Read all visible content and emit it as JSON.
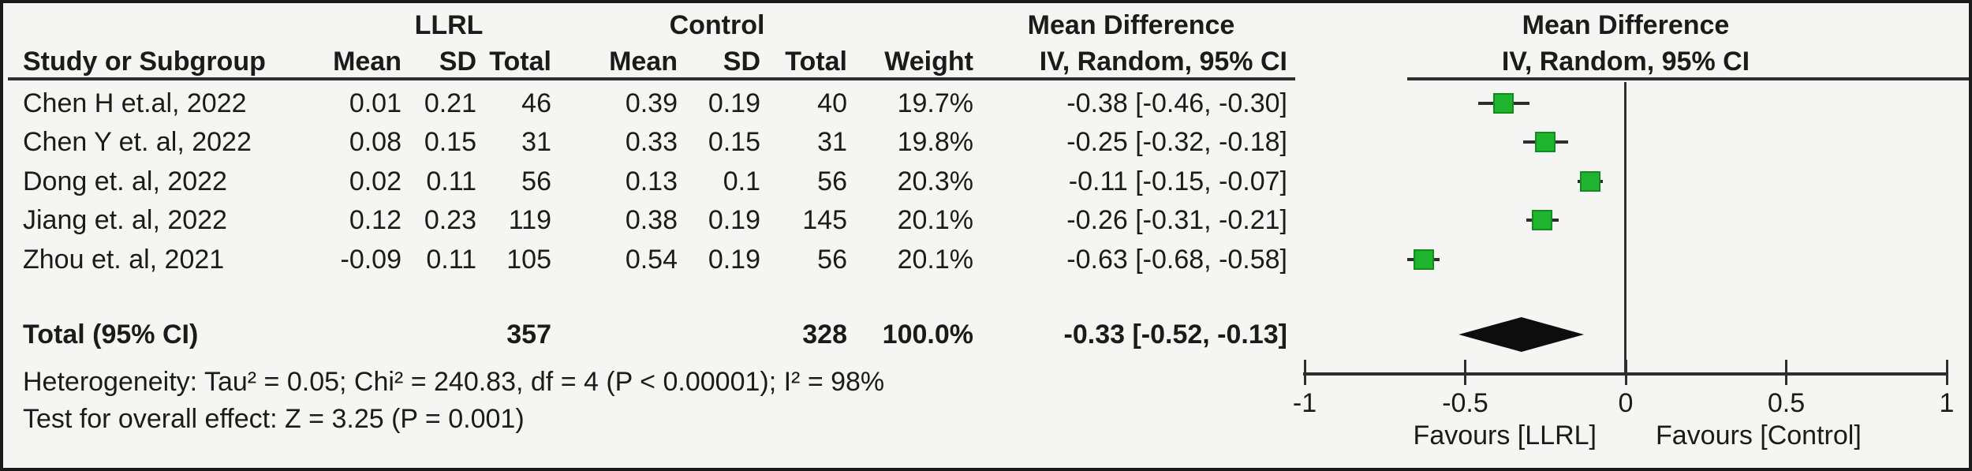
{
  "figure": {
    "background": "#f5f5f4",
    "border_color": "#1a1a1a",
    "text_color": "#1b1b1b"
  },
  "table": {
    "group_headers": {
      "group1": "LLRL",
      "group2": "Control",
      "effect": "Mean Difference"
    },
    "column_headers": {
      "study": "Study or Subgroup",
      "mean": "Mean",
      "sd": "SD",
      "total": "Total",
      "weight": "Weight",
      "effect_ci": "IV, Random, 95% CI"
    },
    "rows": [
      {
        "study": "Chen H et.al, 2022",
        "mean1": "0.01",
        "sd1": "0.21",
        "total1": "46",
        "mean2": "0.39",
        "sd2": "0.19",
        "total2": "40",
        "weight": "19.7%",
        "ci_text": "-0.38 [-0.46, -0.30]"
      },
      {
        "study": "Chen Y et. al, 2022",
        "mean1": "0.08",
        "sd1": "0.15",
        "total1": "31",
        "mean2": "0.33",
        "sd2": "0.15",
        "total2": "31",
        "weight": "19.8%",
        "ci_text": "-0.25 [-0.32, -0.18]"
      },
      {
        "study": "Dong et. al, 2022",
        "mean1": "0.02",
        "sd1": "0.11",
        "total1": "56",
        "mean2": "0.13",
        "sd2": "0.1",
        "total2": "56",
        "weight": "20.3%",
        "ci_text": "-0.11 [-0.15, -0.07]"
      },
      {
        "study": "Jiang et. al, 2022",
        "mean1": "0.12",
        "sd1": "0.23",
        "total1": "119",
        "mean2": "0.38",
        "sd2": "0.19",
        "total2": "145",
        "weight": "20.1%",
        "ci_text": "-0.26 [-0.31, -0.21]"
      },
      {
        "study": "Zhou et. al, 2021",
        "mean1": "-0.09",
        "sd1": "0.11",
        "total1": "105",
        "mean2": "0.54",
        "sd2": "0.19",
        "total2": "56",
        "weight": "20.1%",
        "ci_text": "-0.63 [-0.68, -0.58]"
      }
    ],
    "total_row": {
      "label": "Total (95% CI)",
      "total1": "357",
      "total2": "328",
      "weight": "100.0%",
      "ci_text": "-0.33 [-0.52, -0.13]"
    }
  },
  "footer": {
    "heterogeneity": "Heterogeneity: Tau² = 0.05; Chi² = 240.83, df = 4 (P < 0.00001); I² = 98%",
    "overall_effect": "Test for overall effect: Z = 3.25 (P = 0.001)"
  },
  "plot": {
    "header_line1": "Mean Difference",
    "header_line2": "IV, Random, 95% CI",
    "tick_labels": [
      "-1",
      "-0.5",
      "0",
      "0.5",
      "1"
    ],
    "favours_left": "Favours [LLRL]",
    "favours_right": "Favours [Control]",
    "marker_fill": "#1eb42d",
    "marker_border": "#128c1e",
    "line_color": "#2e2e2e",
    "diamond_color": "#0d0d0d"
  },
  "chart_data": {
    "type": "forest",
    "effect_label": "Mean Difference",
    "method": "IV, Random, 95% CI",
    "xlim": [
      -1,
      1
    ],
    "ticks": [
      -1,
      -0.5,
      0,
      0.5,
      1
    ],
    "favours": [
      "Favours [LLRL]",
      "Favours [Control]"
    ],
    "studies": [
      {
        "name": "Chen H et.al, 2022",
        "mean_exp": 0.01,
        "sd_exp": 0.21,
        "n_exp": 46,
        "mean_ctrl": 0.39,
        "sd_ctrl": 0.19,
        "n_ctrl": 40,
        "weight_pct": 19.7,
        "estimate": -0.38,
        "ci_low": -0.46,
        "ci_high": -0.3
      },
      {
        "name": "Chen Y et. al, 2022",
        "mean_exp": 0.08,
        "sd_exp": 0.15,
        "n_exp": 31,
        "mean_ctrl": 0.33,
        "sd_ctrl": 0.15,
        "n_ctrl": 31,
        "weight_pct": 19.8,
        "estimate": -0.25,
        "ci_low": -0.32,
        "ci_high": -0.18
      },
      {
        "name": "Dong et. al, 2022",
        "mean_exp": 0.02,
        "sd_exp": 0.11,
        "n_exp": 56,
        "mean_ctrl": 0.13,
        "sd_ctrl": 0.1,
        "n_ctrl": 56,
        "weight_pct": 20.3,
        "estimate": -0.11,
        "ci_low": -0.15,
        "ci_high": -0.07
      },
      {
        "name": "Jiang et. al, 2022",
        "mean_exp": 0.12,
        "sd_exp": 0.23,
        "n_exp": 119,
        "mean_ctrl": 0.38,
        "sd_ctrl": 0.19,
        "n_ctrl": 145,
        "weight_pct": 20.1,
        "estimate": -0.26,
        "ci_low": -0.31,
        "ci_high": -0.21
      },
      {
        "name": "Zhou et. al, 2021",
        "mean_exp": -0.09,
        "sd_exp": 0.11,
        "n_exp": 105,
        "mean_ctrl": 0.54,
        "sd_ctrl": 0.19,
        "n_ctrl": 56,
        "weight_pct": 20.1,
        "estimate": -0.63,
        "ci_low": -0.68,
        "ci_high": -0.58
      }
    ],
    "total": {
      "name": "Total (95% CI)",
      "n_exp": 357,
      "n_ctrl": 328,
      "weight_pct": 100.0,
      "estimate": -0.33,
      "ci_low": -0.52,
      "ci_high": -0.13
    },
    "heterogeneity": {
      "tau2": 0.05,
      "chi2": 240.83,
      "df": 4,
      "p": "< 0.00001",
      "i2_pct": 98
    },
    "overall_effect": {
      "z": 3.25,
      "p": "= 0.001"
    }
  }
}
